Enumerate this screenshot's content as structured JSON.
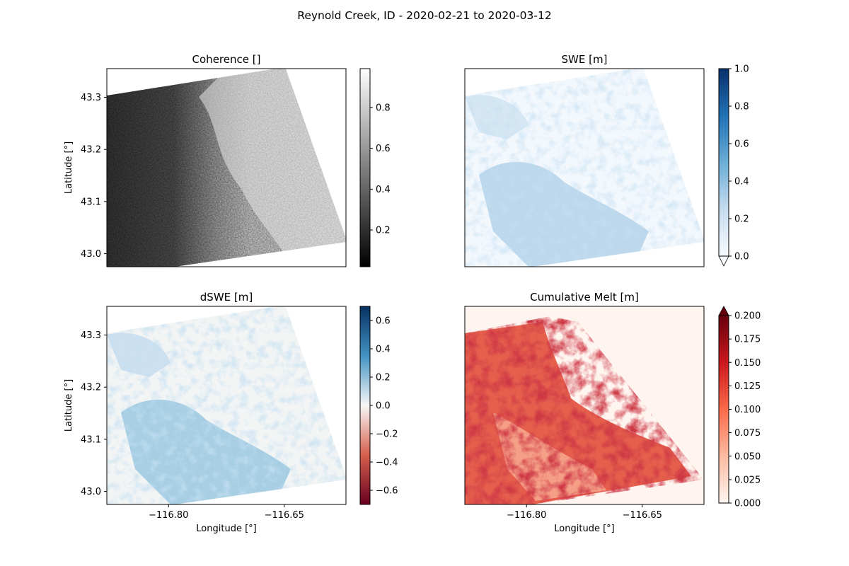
{
  "figure": {
    "suptitle": "Reynold Creek, ID - 2020-02-21 to 2020-03-12"
  },
  "chart_data": [
    {
      "type": "heatmap",
      "title": "Coherence []",
      "ylabel": "Latitude [°]",
      "xlabel": "",
      "xlim": [
        -116.88,
        -116.57
      ],
      "ylim": [
        42.975,
        43.355
      ],
      "x_ticks": [],
      "y_ticks": [
        43.0,
        43.1,
        43.2,
        43.3
      ],
      "y_tick_labels": [
        "43.0",
        "43.1",
        "43.2",
        "43.3"
      ],
      "colormap": "gray",
      "colorbar": {
        "range": [
          0.02,
          0.99
        ],
        "ticks": [
          0.2,
          0.4,
          0.6,
          0.8
        ],
        "tick_labels": [
          "0.2",
          "0.4",
          "0.6",
          "0.8"
        ],
        "extend": "neither",
        "colors": [
          "#000000",
          "#ffffff"
        ]
      }
    },
    {
      "type": "heatmap",
      "title": "SWE [m]",
      "ylabel": "",
      "xlabel": "",
      "xlim": [
        -116.88,
        -116.57
      ],
      "ylim": [
        42.975,
        43.355
      ],
      "x_ticks": [],
      "y_ticks": [],
      "colormap": "Blues",
      "colorbar": {
        "range": [
          0.0,
          1.0
        ],
        "ticks": [
          0.0,
          0.2,
          0.4,
          0.6,
          0.8,
          1.0
        ],
        "tick_labels": [
          "0.0",
          "0.2",
          "0.4",
          "0.6",
          "0.8",
          "1.0"
        ],
        "extend": "min",
        "colors": [
          "#f7fbff",
          "#c6dbef",
          "#6baed6",
          "#2171b5",
          "#08306b"
        ]
      }
    },
    {
      "type": "heatmap",
      "title": "dSWE [m]",
      "ylabel": "Latitude [°]",
      "xlabel": "Longitude [°]",
      "xlim": [
        -116.88,
        -116.57
      ],
      "ylim": [
        42.975,
        43.355
      ],
      "x_ticks": [
        -116.8,
        -116.65
      ],
      "x_tick_labels": [
        "−116.80",
        "−116.65"
      ],
      "y_ticks": [
        43.0,
        43.1,
        43.2,
        43.3
      ],
      "y_tick_labels": [
        "43.0",
        "43.1",
        "43.2",
        "43.3"
      ],
      "colormap": "RdBu",
      "colorbar": {
        "range": [
          -0.7,
          0.7
        ],
        "ticks": [
          -0.6,
          -0.4,
          -0.2,
          0.0,
          0.2,
          0.4,
          0.6
        ],
        "tick_labels": [
          "−0.6",
          "−0.4",
          "−0.2",
          "0.0",
          "0.2",
          "0.4",
          "0.6"
        ],
        "extend": "neither",
        "colors": [
          "#67001f",
          "#d6604d",
          "#f7f7f7",
          "#4393c3",
          "#053061"
        ]
      }
    },
    {
      "type": "heatmap",
      "title": "Cumulative Melt [m]",
      "ylabel": "",
      "xlabel": "Longitude [°]",
      "xlim": [
        -116.88,
        -116.57
      ],
      "ylim": [
        42.975,
        43.355
      ],
      "x_ticks": [
        -116.8,
        -116.65
      ],
      "x_tick_labels": [
        "−116.80",
        "−116.65"
      ],
      "y_ticks": [],
      "colormap": "Reds",
      "colorbar": {
        "range": [
          0.0,
          0.2
        ],
        "ticks": [
          0.0,
          0.025,
          0.05,
          0.075,
          0.1,
          0.125,
          0.15,
          0.175,
          0.2
        ],
        "tick_labels": [
          "0.000",
          "0.025",
          "0.050",
          "0.075",
          "0.100",
          "0.125",
          "0.150",
          "0.175",
          "0.200"
        ],
        "extend": "max",
        "colors": [
          "#fff5f0",
          "#fcbba1",
          "#fb6a4a",
          "#cb181d",
          "#67000d"
        ]
      }
    }
  ]
}
